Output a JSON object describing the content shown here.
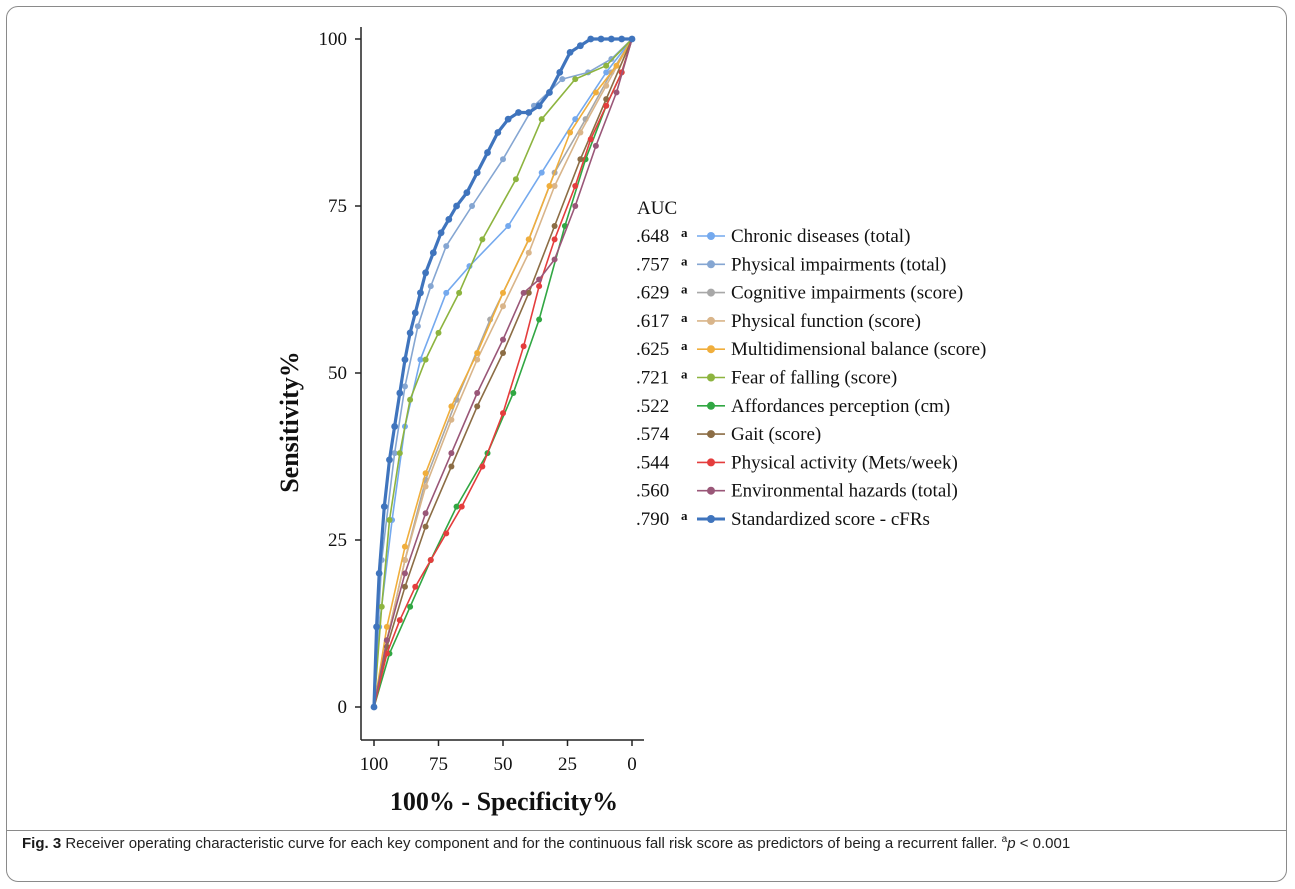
{
  "caption": {
    "label": "Fig. 3",
    "text": "Receiver operating characteristic curve for each key component and for the continuous fall risk score as predictors of being a recurrent faller.",
    "sup": "a",
    "p_italic": "p",
    "p_rest": " < 0.001"
  },
  "chart_data": {
    "type": "line",
    "xlabel": "100% - Specificity%",
    "ylabel": "Sensitivity%",
    "xlim": [
      100,
      0
    ],
    "ylim": [
      0,
      100
    ],
    "x_ticks": [
      100,
      75,
      50,
      25,
      0
    ],
    "y_ticks": [
      0,
      25,
      50,
      75,
      100
    ],
    "grid": false,
    "legend_title": "AUC",
    "legend_position": "right",
    "series": [
      {
        "name": "Chronic diseases (total)",
        "auc": ".648",
        "sig": "a",
        "color": "#74a9ee",
        "x": [
          100,
          98,
          93,
          88,
          82,
          72,
          63,
          48,
          35,
          22,
          10,
          0
        ],
        "y": [
          0,
          12,
          28,
          42,
          52,
          62,
          66,
          72,
          80,
          88,
          95,
          100
        ]
      },
      {
        "name": "Physical impairments (total)",
        "auc": ".757",
        "sig": "a",
        "color": "#85a6d2",
        "x": [
          100,
          97,
          92,
          88,
          83,
          78,
          72,
          62,
          50,
          38,
          27,
          17,
          8,
          0
        ],
        "y": [
          0,
          22,
          38,
          48,
          57,
          63,
          69,
          75,
          82,
          90,
          94,
          95,
          97,
          100
        ]
      },
      {
        "name": "Cognitive impairments (score)",
        "auc": ".629",
        "sig": "a",
        "color": "#a8a8a8",
        "x": [
          100,
          95,
          88,
          80,
          68,
          55,
          40,
          30,
          18,
          8,
          0
        ],
        "y": [
          0,
          10,
          22,
          34,
          46,
          58,
          70,
          80,
          88,
          95,
          100
        ]
      },
      {
        "name": "Physical function (score)",
        "auc": ".617",
        "sig": "a",
        "color": "#d9b58a",
        "x": [
          100,
          95,
          88,
          80,
          70,
          60,
          50,
          40,
          30,
          20,
          10,
          0
        ],
        "y": [
          0,
          10,
          22,
          33,
          43,
          52,
          60,
          68,
          78,
          86,
          93,
          100
        ]
      },
      {
        "name": "Multidimensional balance (score)",
        "auc": ".625",
        "sig": "a",
        "color": "#f0ae3c",
        "x": [
          100,
          95,
          88,
          80,
          70,
          60,
          50,
          40,
          32,
          24,
          14,
          6,
          0
        ],
        "y": [
          0,
          12,
          24,
          35,
          45,
          53,
          62,
          70,
          78,
          86,
          92,
          96,
          100
        ]
      },
      {
        "name": "Fear of falling (score)",
        "auc": ".721",
        "sig": "a",
        "color": "#8db43f",
        "x": [
          100,
          97,
          94,
          90,
          86,
          80,
          75,
          67,
          58,
          45,
          35,
          22,
          10,
          0
        ],
        "y": [
          0,
          15,
          28,
          38,
          46,
          52,
          56,
          62,
          70,
          79,
          88,
          94,
          96,
          100
        ]
      },
      {
        "name": "Affordances perception (cm)",
        "auc": ".522",
        "sig": "a_none",
        "color": "#31a743",
        "x": [
          100,
          94,
          86,
          78,
          68,
          56,
          46,
          36,
          26,
          18,
          10,
          4,
          0
        ],
        "y": [
          0,
          8,
          15,
          22,
          30,
          38,
          47,
          58,
          72,
          82,
          90,
          95,
          100
        ]
      },
      {
        "name": "Gait (score)",
        "auc": ".574",
        "sig": "a_none",
        "color": "#8c6d45",
        "x": [
          100,
          95,
          88,
          80,
          70,
          60,
          50,
          40,
          30,
          20,
          10,
          0
        ],
        "y": [
          0,
          9,
          18,
          27,
          36,
          45,
          53,
          62,
          72,
          82,
          91,
          100
        ]
      },
      {
        "name": "Physical activity (Mets/week)",
        "auc": ".544",
        "sig": "a_none",
        "color": "#e43d3d",
        "x": [
          100,
          95,
          90,
          84,
          78,
          72,
          66,
          58,
          50,
          42,
          36,
          30,
          22,
          16,
          10,
          4,
          0
        ],
        "y": [
          0,
          8,
          13,
          18,
          22,
          26,
          30,
          36,
          44,
          54,
          63,
          70,
          78,
          85,
          90,
          95,
          100
        ]
      },
      {
        "name": "Environmental hazards (total)",
        "auc": ".560",
        "sig": "a_none",
        "color": "#9a5778",
        "x": [
          100,
          95,
          88,
          80,
          70,
          60,
          50,
          42,
          36,
          30,
          22,
          14,
          6,
          0
        ],
        "y": [
          0,
          10,
          20,
          29,
          38,
          47,
          55,
          62,
          64,
          67,
          75,
          84,
          92,
          100
        ]
      },
      {
        "name": "Standardized score - cFRs",
        "auc": ".790",
        "sig": "a",
        "color": "#3f74bd",
        "x": [
          100,
          99,
          98,
          96,
          94,
          92,
          90,
          88,
          86,
          84,
          82,
          80,
          77,
          74,
          71,
          68,
          64,
          60,
          56,
          52,
          48,
          44,
          40,
          36,
          32,
          28,
          24,
          20,
          16,
          12,
          8,
          4,
          0
        ],
        "y": [
          0,
          12,
          20,
          30,
          37,
          42,
          47,
          52,
          56,
          59,
          62,
          65,
          68,
          71,
          73,
          75,
          77,
          80,
          83,
          86,
          88,
          89,
          89,
          90,
          92,
          95,
          98,
          99,
          100,
          100,
          100,
          100,
          100
        ]
      }
    ]
  }
}
